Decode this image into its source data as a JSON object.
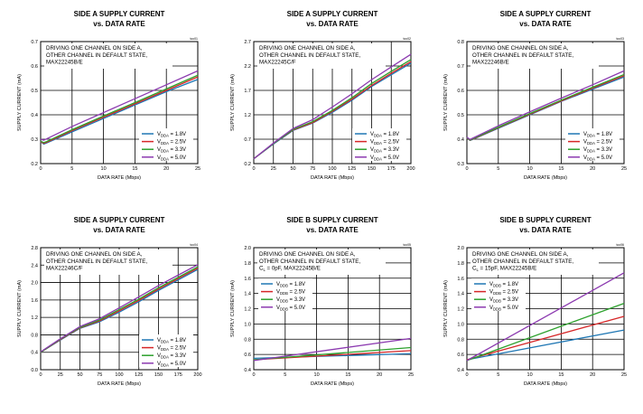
{
  "chart_data": [
    {
      "type": "line",
      "title": "SIDE A SUPPLY CURRENT",
      "subtitle": "vs. DATA RATE",
      "toc": "toc01",
      "xlabel": "DATA RATE (Mbps)",
      "ylabel": "SUPPLY CURRENT (mA)",
      "xlim": [
        0,
        25
      ],
      "ylim": [
        0.2,
        0.7
      ],
      "xticks": [
        0,
        5,
        10,
        15,
        20,
        25
      ],
      "xtick_labels": [
        "0",
        "5",
        "10",
        "15",
        "20",
        "25"
      ],
      "yticks": [
        0.2,
        0.3,
        0.4,
        0.5,
        0.6,
        0.7
      ],
      "ytick_labels": [
        "0.2",
        "0.3",
        "0.4",
        "0.5",
        "0.6",
        "0.7"
      ],
      "note": [
        "DRIVING ONE CHANNEL ON SIDE A,",
        "OTHER CHANNEL IN DEFAULT STATE,",
        "MAX22245B/E"
      ],
      "note_sub": "",
      "series": [
        {
          "name": "VDDA = 1.8V",
          "base": "V",
          "sub": "DDA",
          "rest": " = 1.8V",
          "color": "#1f77b4",
          "x": [
            0,
            0.5,
            1,
            5,
            10,
            15,
            20,
            25
          ],
          "y": [
            0.29,
            0.28,
            0.285,
            0.33,
            0.385,
            0.44,
            0.495,
            0.545
          ]
        },
        {
          "name": "VDDA = 2.5V",
          "base": "V",
          "sub": "DDA",
          "rest": " = 2.5V",
          "color": "#d62728",
          "x": [
            0,
            0.5,
            1,
            5,
            10,
            15,
            20,
            25
          ],
          "y": [
            0.29,
            0.283,
            0.288,
            0.335,
            0.39,
            0.445,
            0.5,
            0.555
          ]
        },
        {
          "name": "VDDA = 3.3V",
          "base": "V",
          "sub": "DDA",
          "rest": " = 3.3V",
          "color": "#2ca02c",
          "x": [
            0,
            0.5,
            1,
            5,
            10,
            15,
            20,
            25
          ],
          "y": [
            0.292,
            0.286,
            0.291,
            0.339,
            0.395,
            0.45,
            0.506,
            0.562
          ]
        },
        {
          "name": "VDDA = 5.0V",
          "base": "V",
          "sub": "DDA",
          "rest": " = 5.0V",
          "color": "#8c3ab0",
          "x": [
            0,
            0.5,
            1,
            5,
            10,
            15,
            20,
            25
          ],
          "y": [
            0.3,
            0.296,
            0.302,
            0.352,
            0.409,
            0.466,
            0.523,
            0.58
          ]
        }
      ]
    },
    {
      "type": "line",
      "title": "SIDE A SUPPLY CURRENT",
      "subtitle": "vs. DATA RATE",
      "toc": "toc02",
      "xlabel": "DATA RATE (Mbps)",
      "ylabel": "SUPPLY CURRENT (mA)",
      "xlim": [
        0,
        200
      ],
      "ylim": [
        0.2,
        2.7
      ],
      "xticks": [
        0,
        25,
        50,
        75,
        100,
        125,
        150,
        175,
        200
      ],
      "xtick_labels": [
        "0",
        "25",
        "50",
        "75",
        "100",
        "125",
        "150",
        "175",
        "200"
      ],
      "yticks": [
        0.2,
        0.7,
        1.2,
        1.7,
        2.2,
        2.7
      ],
      "ytick_labels": [
        "0.2",
        "0.7",
        "1.2",
        "1.7",
        "2.2",
        "2.7"
      ],
      "note": [
        "DRIVING ONE CHANNEL ON SIDE A,",
        "OTHER CHANNEL IN DEFAULT STATE,",
        "MAX22245C/F"
      ],
      "note_sub": "",
      "series": [
        {
          "name": "VDDA = 1.8V",
          "base": "V",
          "sub": "DDA",
          "rest": " = 1.8V",
          "color": "#1f77b4",
          "x": [
            0,
            25,
            50,
            75,
            100,
            125,
            150,
            175,
            200
          ],
          "y": [
            0.3,
            0.6,
            0.88,
            1.03,
            1.25,
            1.5,
            1.78,
            2.02,
            2.26
          ]
        },
        {
          "name": "VDDA = 2.5V",
          "base": "V",
          "sub": "DDA",
          "rest": " = 2.5V",
          "color": "#d62728",
          "x": [
            0,
            25,
            50,
            75,
            100,
            125,
            150,
            175,
            200
          ],
          "y": [
            0.3,
            0.61,
            0.89,
            1.04,
            1.27,
            1.52,
            1.8,
            2.05,
            2.29
          ]
        },
        {
          "name": "VDDA = 3.3V",
          "base": "V",
          "sub": "DDA",
          "rest": " = 3.3V",
          "color": "#2ca02c",
          "x": [
            0,
            25,
            50,
            75,
            100,
            125,
            150,
            175,
            200
          ],
          "y": [
            0.3,
            0.61,
            0.9,
            1.06,
            1.29,
            1.55,
            1.84,
            2.09,
            2.33
          ]
        },
        {
          "name": "VDDA = 5.0V",
          "base": "V",
          "sub": "DDA",
          "rest": " = 5.0V",
          "color": "#8c3ab0",
          "x": [
            0,
            25,
            50,
            75,
            100,
            125,
            150,
            175,
            200
          ],
          "y": [
            0.3,
            0.62,
            0.92,
            1.1,
            1.36,
            1.63,
            1.92,
            2.18,
            2.44
          ]
        }
      ]
    },
    {
      "type": "line",
      "title": "SIDE A SUPPLY CURRENT",
      "subtitle": "vs. DATA RATE",
      "toc": "toc03",
      "xlabel": "DATA RATE (Mbps)",
      "ylabel": "SUPPLY CURRENT (mA)",
      "xlim": [
        0,
        25
      ],
      "ylim": [
        0.3,
        0.8
      ],
      "xticks": [
        0,
        5,
        10,
        15,
        20,
        25
      ],
      "xtick_labels": [
        "0",
        "5",
        "10",
        "15",
        "20",
        "25"
      ],
      "yticks": [
        0.3,
        0.4,
        0.5,
        0.6,
        0.7,
        0.8
      ],
      "ytick_labels": [
        "0.3",
        "0.4",
        "0.5",
        "0.6",
        "0.7",
        "0.8"
      ],
      "note": [
        "DRIVING ONE CHANNEL ON SIDE A,",
        "OTHER CHANNEL IN DEFAULT STATE,",
        "MAX22246B/E"
      ],
      "note_sub": "",
      "series": [
        {
          "name": "VDDA = 1.8V",
          "base": "V",
          "sub": "DDA",
          "rest": " = 1.8V",
          "color": "#1f77b4",
          "x": [
            0,
            0.5,
            1,
            5,
            10,
            15,
            20,
            25
          ],
          "y": [
            0.405,
            0.395,
            0.4,
            0.445,
            0.5,
            0.555,
            0.605,
            0.655
          ]
        },
        {
          "name": "VDDA = 2.5V",
          "base": "V",
          "sub": "DDA",
          "rest": " = 2.5V",
          "color": "#d62728",
          "x": [
            0,
            0.5,
            1,
            5,
            10,
            15,
            20,
            25
          ],
          "y": [
            0.405,
            0.396,
            0.401,
            0.447,
            0.502,
            0.557,
            0.609,
            0.66
          ]
        },
        {
          "name": "VDDA = 3.3V",
          "base": "V",
          "sub": "DDA",
          "rest": " = 3.3V",
          "color": "#2ca02c",
          "x": [
            0,
            0.5,
            1,
            5,
            10,
            15,
            20,
            25
          ],
          "y": [
            0.406,
            0.397,
            0.402,
            0.449,
            0.505,
            0.56,
            0.613,
            0.665
          ]
        },
        {
          "name": "VDDA = 5.0V",
          "base": "V",
          "sub": "DDA",
          "rest": " = 5.0V",
          "color": "#8c3ab0",
          "x": [
            0,
            0.5,
            1,
            5,
            10,
            15,
            20,
            25
          ],
          "y": [
            0.408,
            0.399,
            0.405,
            0.455,
            0.512,
            0.568,
            0.623,
            0.68
          ]
        }
      ]
    },
    {
      "type": "line",
      "title": "SIDE A SUPPLY CURRENT",
      "subtitle": "vs. DATA RATE",
      "toc": "toc04",
      "xlabel": "DATA RATE (Mbps)",
      "ylabel": "SUPPLY CURRENT (mA)",
      "xlim": [
        0,
        200
      ],
      "ylim": [
        0.0,
        2.8
      ],
      "xticks": [
        0,
        25,
        50,
        75,
        100,
        125,
        150,
        175,
        200
      ],
      "xtick_labels": [
        "0",
        "25",
        "50",
        "75",
        "100",
        "125",
        "150",
        "175",
        "200"
      ],
      "yticks": [
        0.0,
        0.4,
        0.8,
        1.2,
        1.6,
        2.0,
        2.4,
        2.8
      ],
      "ytick_labels": [
        "0.0",
        "0.4",
        "0.8",
        "1.2",
        "1.6",
        "2.0",
        "2.4",
        "2.8"
      ],
      "note": [
        "DRIVING ONE CHANNEL ON SIDE A,",
        "OTHER CHANNEL IN DEFAULT STATE,",
        "MAX22246C/F"
      ],
      "note_sub": "",
      "series": [
        {
          "name": "VDDA = 1.8V",
          "base": "V",
          "sub": "DDA",
          "rest": " = 1.8V",
          "color": "#1f77b4",
          "x": [
            0,
            25,
            50,
            75,
            100,
            125,
            150,
            175,
            200
          ],
          "y": [
            0.4,
            0.68,
            0.95,
            1.1,
            1.32,
            1.56,
            1.82,
            2.06,
            2.3
          ]
        },
        {
          "name": "VDDA = 2.5V",
          "base": "V",
          "sub": "DDA",
          "rest": " = 2.5V",
          "color": "#d62728",
          "x": [
            0,
            25,
            50,
            75,
            100,
            125,
            150,
            175,
            200
          ],
          "y": [
            0.4,
            0.69,
            0.96,
            1.12,
            1.35,
            1.59,
            1.85,
            2.09,
            2.33
          ]
        },
        {
          "name": "VDDA = 3.3V",
          "base": "V",
          "sub": "DDA",
          "rest": " = 3.3V",
          "color": "#2ca02c",
          "x": [
            0,
            25,
            50,
            75,
            100,
            125,
            150,
            175,
            200
          ],
          "y": [
            0.4,
            0.7,
            0.97,
            1.14,
            1.38,
            1.62,
            1.88,
            2.12,
            2.36
          ]
        },
        {
          "name": "VDDA = 5.0V",
          "base": "V",
          "sub": "DDA",
          "rest": " = 5.0V",
          "color": "#8c3ab0",
          "x": [
            0,
            25,
            50,
            75,
            100,
            125,
            150,
            175,
            200
          ],
          "y": [
            0.41,
            0.71,
            0.99,
            1.17,
            1.42,
            1.67,
            1.93,
            2.17,
            2.41
          ]
        }
      ]
    },
    {
      "type": "line",
      "title": "SIDE B SUPPLY CURRENT",
      "subtitle": "vs. DATA RATE",
      "toc": "toc05",
      "xlabel": "DATA RATE (Mbps)",
      "ylabel": "SUPPLY CURRENT (mA)",
      "xlim": [
        0,
        25
      ],
      "ylim": [
        0.4,
        2.0
      ],
      "xticks": [
        0,
        5,
        10,
        15,
        20,
        25
      ],
      "xtick_labels": [
        "0",
        "5",
        "10",
        "15",
        "20",
        "25"
      ],
      "yticks": [
        0.4,
        0.6,
        0.8,
        1.0,
        1.2,
        1.4,
        1.6,
        1.8,
        2.0
      ],
      "ytick_labels": [
        "0.4",
        "0.6",
        "0.8",
        "1.0",
        "1.2",
        "1.4",
        "1.6",
        "1.8",
        "2.0"
      ],
      "note": [
        "DRIVING ONE CHANNEL ON SIDE A,",
        "OTHER CHANNEL IN DEFAULT STATE,",
        "C = 0pF, MAX22245B/E"
      ],
      "note_sub": "L",
      "series": [
        {
          "name": "VDDB = 1.8V",
          "base": "V",
          "sub": "DDB",
          "rest": " = 1.8V",
          "color": "#1f77b4",
          "x": [
            0,
            25
          ],
          "y": [
            0.55,
            0.61
          ]
        },
        {
          "name": "VDDB = 2.5V",
          "base": "V",
          "sub": "DDB",
          "rest": " = 2.5V",
          "color": "#d62728",
          "x": [
            0,
            25
          ],
          "y": [
            0.53,
            0.65
          ]
        },
        {
          "name": "VDDB = 3.3V",
          "base": "V",
          "sub": "DDB",
          "rest": " = 3.3V",
          "color": "#2ca02c",
          "x": [
            0,
            25
          ],
          "y": [
            0.53,
            0.69
          ]
        },
        {
          "name": "VDDB = 5.0V",
          "base": "V",
          "sub": "DDB",
          "rest": " = 5.0V",
          "color": "#8c3ab0",
          "x": [
            0,
            25
          ],
          "y": [
            0.52,
            0.81
          ]
        }
      ]
    },
    {
      "type": "line",
      "title": "SIDE B SUPPLY CURRENT",
      "subtitle": "vs. DATA RATE",
      "toc": "toc06",
      "xlabel": "DATA RATE (Mbps)",
      "ylabel": "SUPPLY CURRENT (mA)",
      "xlim": [
        0,
        25
      ],
      "ylim": [
        0.4,
        2.0
      ],
      "xticks": [
        0,
        5,
        10,
        15,
        20,
        25
      ],
      "xtick_labels": [
        "0",
        "5",
        "10",
        "15",
        "20",
        "25"
      ],
      "yticks": [
        0.4,
        0.6,
        0.8,
        1.0,
        1.2,
        1.4,
        1.6,
        1.8,
        2.0
      ],
      "ytick_labels": [
        "0.4",
        "0.6",
        "0.8",
        "1.0",
        "1.2",
        "1.4",
        "1.6",
        "1.8",
        "2.0"
      ],
      "note": [
        "DRIVING ONE CHANNEL ON SIDE A,",
        "OTHER CHANNEL IN DEFAULT STATE,",
        "C = 15pF, MAX22245B/E"
      ],
      "note_sub": "L",
      "series": [
        {
          "name": "VDDB = 1.8V",
          "base": "V",
          "sub": "DDB",
          "rest": " = 1.8V",
          "color": "#1f77b4",
          "x": [
            0,
            25
          ],
          "y": [
            0.53,
            0.92
          ]
        },
        {
          "name": "VDDB = 2.5V",
          "base": "V",
          "sub": "DDB",
          "rest": " = 2.5V",
          "color": "#d62728",
          "x": [
            0,
            25
          ],
          "y": [
            0.53,
            1.1
          ]
        },
        {
          "name": "VDDB = 3.3V",
          "base": "V",
          "sub": "DDB",
          "rest": " = 3.3V",
          "color": "#2ca02c",
          "x": [
            0,
            25
          ],
          "y": [
            0.52,
            1.27
          ]
        },
        {
          "name": "VDDB = 5.0V",
          "base": "V",
          "sub": "DDB",
          "rest": " = 5.0V",
          "color": "#8c3ab0",
          "x": [
            0,
            25
          ],
          "y": [
            0.52,
            1.67
          ]
        }
      ]
    }
  ]
}
